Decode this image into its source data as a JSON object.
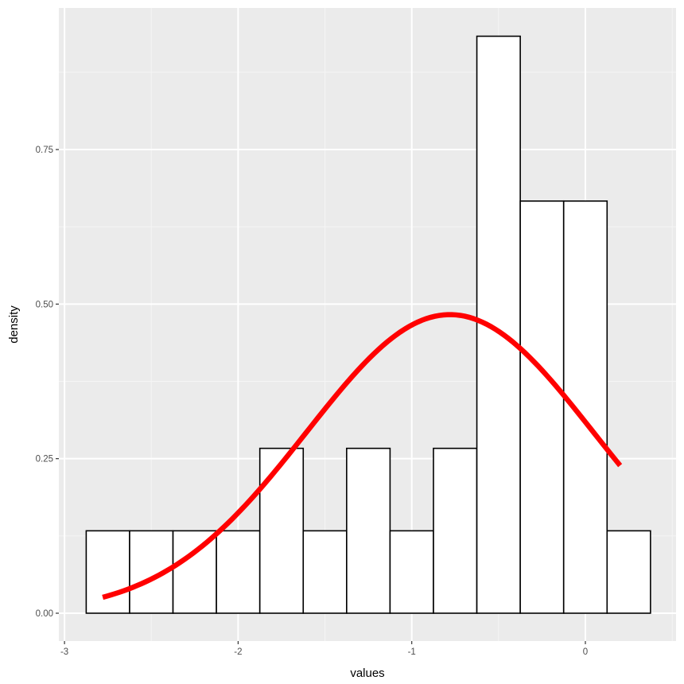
{
  "chart_data": {
    "type": "bar",
    "subtype": "histogram_with_density_curve",
    "title": "",
    "xlabel": "values",
    "ylabel": "density",
    "xlim": [
      -3.05,
      0.52
    ],
    "ylim": [
      -0.045,
      0.98
    ],
    "grid": true,
    "legend": null,
    "x_ticks": [
      -3,
      -2,
      -1,
      0
    ],
    "x_tick_labels": [
      "-3",
      "-2",
      "-1",
      "0"
    ],
    "y_ticks": [
      0,
      0.25,
      0.5,
      0.75
    ],
    "y_tick_labels": [
      "0.00",
      "0.25",
      "0.50",
      "0.75"
    ],
    "bin_width": 0.25,
    "bins": [
      {
        "x_min": -2.875,
        "x_max": -2.625,
        "density": 0.1333,
        "count": 1
      },
      {
        "x_min": -2.625,
        "x_max": -2.375,
        "density": 0.1333,
        "count": 1
      },
      {
        "x_min": -2.375,
        "x_max": -2.125,
        "density": 0.1333,
        "count": 1
      },
      {
        "x_min": -2.125,
        "x_max": -1.875,
        "density": 0.1333,
        "count": 1
      },
      {
        "x_min": -1.875,
        "x_max": -1.625,
        "density": 0.2667,
        "count": 2
      },
      {
        "x_min": -1.625,
        "x_max": -1.375,
        "density": 0.1333,
        "count": 1
      },
      {
        "x_min": -1.375,
        "x_max": -1.125,
        "density": 0.2667,
        "count": 2
      },
      {
        "x_min": -1.125,
        "x_max": -0.875,
        "density": 0.1333,
        "count": 1
      },
      {
        "x_min": -0.875,
        "x_max": -0.625,
        "density": 0.2667,
        "count": 2
      },
      {
        "x_min": -0.625,
        "x_max": -0.375,
        "density": 0.9333,
        "count": 7
      },
      {
        "x_min": -0.375,
        "x_max": -0.125,
        "density": 0.6667,
        "count": 5
      },
      {
        "x_min": -0.125,
        "x_max": 0.125,
        "density": 0.6667,
        "count": 5
      },
      {
        "x_min": 0.125,
        "x_max": 0.375,
        "density": 0.1333,
        "count": 1
      }
    ],
    "series": [
      {
        "name": "normal density curve",
        "type": "line",
        "color": "#ff0000",
        "mean": -0.78,
        "sd": 0.826,
        "x_range": [
          -2.78,
          0.2
        ],
        "x": [
          -2.78,
          -2.5,
          -2.25,
          -2.0,
          -1.75,
          -1.5,
          -1.25,
          -1.0,
          -0.78,
          -0.5,
          -0.25,
          0.0,
          0.2
        ],
        "values": [
          0.026,
          0.055,
          0.1,
          0.16,
          0.24,
          0.33,
          0.41,
          0.47,
          0.483,
          0.455,
          0.4,
          0.31,
          0.239
        ]
      }
    ],
    "colors": {
      "panel_background": "#ebebeb",
      "grid_major": "#ffffff",
      "bar_fill": "#ffffff",
      "bar_outline": "#000000",
      "curve": "#ff0000"
    }
  }
}
